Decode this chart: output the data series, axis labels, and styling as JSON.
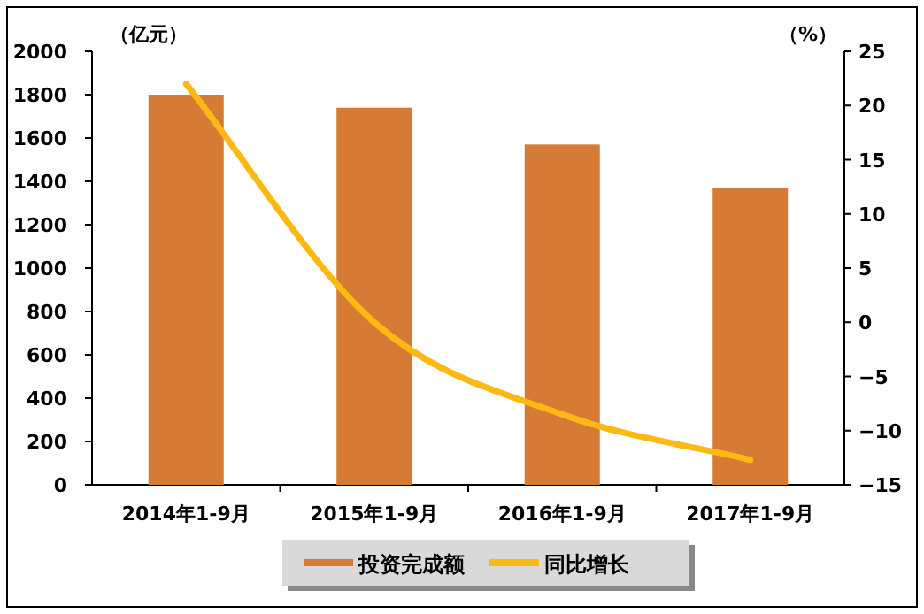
{
  "chart_data": {
    "type": "bar",
    "ylabel": "（亿元）",
    "y2label": "（%）",
    "categories": [
      "2014年1-9月",
      "2015年1-9月",
      "2016年1-9月",
      "2017年1-9月"
    ],
    "series": [
      {
        "name": "投资完成额",
        "color": "#d57b35",
        "values": [
          1800,
          1740,
          1570,
          1370
        ]
      },
      {
        "name": "同比增长",
        "type": "line",
        "axis": "y2",
        "color": "#fdb913",
        "values": [
          22,
          0,
          -8.5,
          -12.7
        ]
      }
    ],
    "ylim": [
      0,
      2000
    ],
    "yticks": [
      0,
      200,
      400,
      600,
      800,
      1000,
      1200,
      1400,
      1600,
      1800,
      2000
    ],
    "y2lim": [
      -15,
      25
    ],
    "y2ticks": [
      -15,
      -10,
      -5,
      0,
      5,
      10,
      15,
      20,
      25
    ],
    "legend": "bottom"
  }
}
